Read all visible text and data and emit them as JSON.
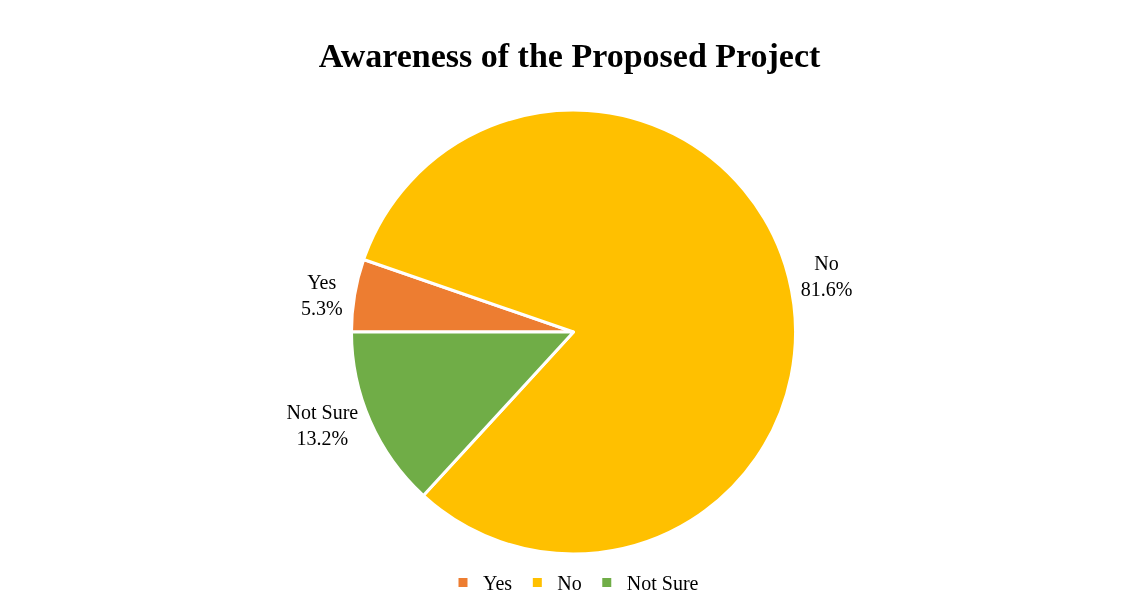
{
  "chart_data": {
    "type": "pie",
    "title": "Awareness of the Proposed Project",
    "categories": [
      "Yes",
      "No",
      "Not Sure"
    ],
    "values": [
      5.3,
      81.6,
      13.2
    ],
    "colors": [
      "#ed7d31",
      "#ffc000",
      "#70ad47"
    ],
    "value_labels": [
      "5.3%",
      "81.6%",
      "13.2%"
    ],
    "legend": "bottom"
  }
}
